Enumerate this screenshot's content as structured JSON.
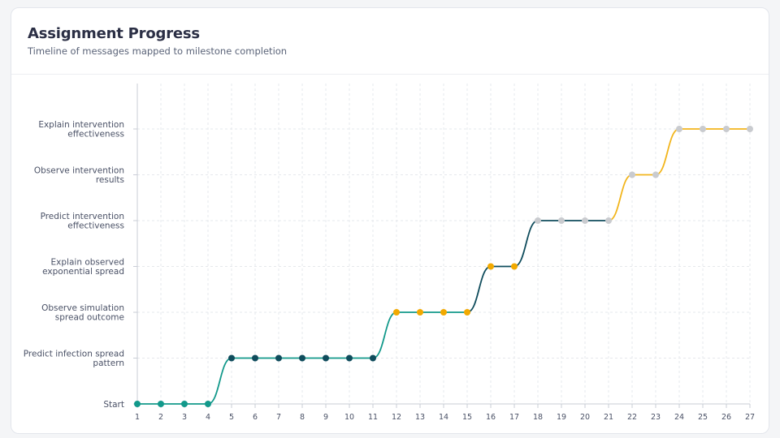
{
  "header": {
    "title": "Assignment Progress",
    "subtitle": "Timeline of messages mapped to milestone completion"
  },
  "chart_data": {
    "type": "line",
    "title": "Assignment Progress",
    "subtitle": "Timeline of messages mapped to milestone completion",
    "xlabel": "",
    "ylabel": "",
    "x": [
      1,
      2,
      3,
      4,
      5,
      6,
      7,
      8,
      9,
      10,
      11,
      12,
      13,
      14,
      15,
      16,
      17,
      18,
      19,
      20,
      21,
      22,
      23,
      24,
      25,
      26,
      27
    ],
    "xlim": [
      1,
      27
    ],
    "categories": [
      [
        "Start"
      ],
      [
        "Predict infection spread",
        "pattern"
      ],
      [
        "Observe simulation",
        "spread outcome"
      ],
      [
        "Explain observed",
        "exponential spread"
      ],
      [
        "Predict intervention",
        "effectiveness"
      ],
      [
        "Observe intervention",
        "results"
      ],
      [
        "Explain intervention",
        "effectiveness"
      ]
    ],
    "grid": true,
    "points": [
      {
        "x": 1,
        "level": 0,
        "color": "#13998b"
      },
      {
        "x": 2,
        "level": 0,
        "color": "#13998b"
      },
      {
        "x": 3,
        "level": 0,
        "color": "#13998b"
      },
      {
        "x": 4,
        "level": 0,
        "color": "#13998b"
      },
      {
        "x": 5,
        "level": 1,
        "color": "#0f4c5c"
      },
      {
        "x": 6,
        "level": 1,
        "color": "#0f4c5c"
      },
      {
        "x": 7,
        "level": 1,
        "color": "#0f4c5c"
      },
      {
        "x": 8,
        "level": 1,
        "color": "#0f4c5c"
      },
      {
        "x": 9,
        "level": 1,
        "color": "#0f4c5c"
      },
      {
        "x": 10,
        "level": 1,
        "color": "#0f4c5c"
      },
      {
        "x": 11,
        "level": 1,
        "color": "#0f4c5c"
      },
      {
        "x": 12,
        "level": 2,
        "color": "#f2a900"
      },
      {
        "x": 13,
        "level": 2,
        "color": "#f2a900"
      },
      {
        "x": 14,
        "level": 2,
        "color": "#f2a900"
      },
      {
        "x": 15,
        "level": 2,
        "color": "#f2a900"
      },
      {
        "x": 16,
        "level": 3,
        "color": "#f2a900"
      },
      {
        "x": 17,
        "level": 3,
        "color": "#f2a900"
      },
      {
        "x": 18,
        "level": 4,
        "color": "#c9cbcf"
      },
      {
        "x": 19,
        "level": 4,
        "color": "#c9cbcf"
      },
      {
        "x": 20,
        "level": 4,
        "color": "#c9cbcf"
      },
      {
        "x": 21,
        "level": 4,
        "color": "#c9cbcf"
      },
      {
        "x": 22,
        "level": 5,
        "color": "#c9cbcf"
      },
      {
        "x": 23,
        "level": 5,
        "color": "#c9cbcf"
      },
      {
        "x": 24,
        "level": 6,
        "color": "#c9cbcf"
      },
      {
        "x": 25,
        "level": 6,
        "color": "#c9cbcf"
      },
      {
        "x": 26,
        "level": 6,
        "color": "#c9cbcf"
      },
      {
        "x": 27,
        "level": 6,
        "color": "#c9cbcf"
      }
    ],
    "segments": [
      {
        "from": 1,
        "to": 11,
        "color": "#13998b"
      },
      {
        "from": 11,
        "to": 15,
        "color": "#13998b"
      },
      {
        "from": 15,
        "to": 18,
        "color": "#0f4c5c"
      },
      {
        "from": 18,
        "to": 21,
        "color": "#0f4c5c"
      },
      {
        "from": 21,
        "to": 27,
        "color": "#f2b51c"
      }
    ],
    "colors": {
      "grid": "#e6e8ec",
      "axis": "#c9cdd6"
    }
  }
}
